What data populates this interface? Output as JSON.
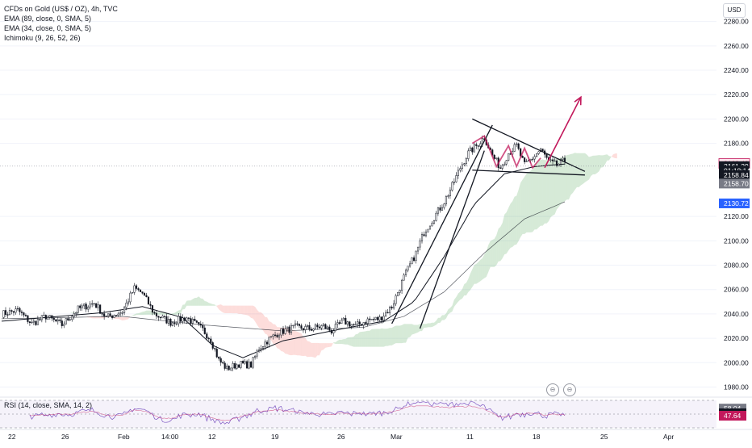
{
  "legend": {
    "title": "CFDs on Gold (US$ / OZ), 4h, TVC",
    "ind1": "EMA (89, close, 0, SMA, 5)",
    "ind2": "EMA (34, close, 0, SMA, 5)",
    "ind3": "Ichimoku (9, 26, 52, 26)",
    "rsi": "RSI (14, close, SMA, 14, 2)"
  },
  "currency": "USD",
  "chart_data": {
    "type": "candlestick",
    "ylim": [
      1975,
      2295
    ],
    "y_ticks": [
      "2280.00",
      "2260.00",
      "2240.00",
      "2220.00",
      "2200.00",
      "2180.00",
      "2120.00",
      "2100.00",
      "2080.00",
      "2060.00",
      "2040.00",
      "2020.00",
      "2000.00",
      "1980.00"
    ],
    "x_ticks": [
      "22",
      "26",
      "Feb",
      "14:00",
      "12",
      "19",
      "26",
      "Mar",
      "11",
      "18",
      "25",
      "Apr"
    ],
    "price_labels": [
      {
        "text": "2163.48",
        "price": 2163.48,
        "color": "#c2185b",
        "filled": false
      },
      {
        "text": "2161.29",
        "price": 2161.29,
        "color": "#131722",
        "filled": true
      },
      {
        "text": "01:18:14",
        "price": 2157.6,
        "color": "#131722",
        "filled": true
      },
      {
        "text": "2158.84",
        "price": 2153.9,
        "color": "#131722",
        "filled": true
      },
      {
        "text": "2158.70",
        "price": 2147.0,
        "color": "#787b86",
        "filled": true
      },
      {
        "text": "2130.72",
        "price": 2130.72,
        "color": "#2962ff",
        "filled": true
      }
    ],
    "current_price": 2161.29,
    "anchors": [
      [
        0,
        2040
      ],
      [
        8,
        2043
      ],
      [
        15,
        2032
      ],
      [
        22,
        2038
      ],
      [
        30,
        2031
      ],
      [
        38,
        2044
      ],
      [
        46,
        2049
      ],
      [
        52,
        2037
      ],
      [
        60,
        2042
      ],
      [
        66,
        2061
      ],
      [
        70,
        2057
      ],
      [
        76,
        2040
      ],
      [
        84,
        2033
      ],
      [
        92,
        2037
      ],
      [
        100,
        2027
      ],
      [
        104,
        2019
      ],
      [
        108,
        2002
      ],
      [
        112,
        1995
      ],
      [
        118,
        1999
      ],
      [
        124,
        1998
      ],
      [
        128,
        2012
      ],
      [
        132,
        2018
      ],
      [
        138,
        2025
      ],
      [
        146,
        2029
      ],
      [
        154,
        2028
      ],
      [
        160,
        2030
      ],
      [
        164,
        2026
      ],
      [
        170,
        2034
      ],
      [
        176,
        2030
      ],
      [
        182,
        2035
      ],
      [
        188,
        2036
      ],
      [
        194,
        2046
      ],
      [
        200,
        2070
      ],
      [
        206,
        2090
      ],
      [
        210,
        2107
      ],
      [
        216,
        2122
      ],
      [
        220,
        2132
      ],
      [
        224,
        2145
      ],
      [
        228,
        2160
      ],
      [
        232,
        2172
      ],
      [
        236,
        2178
      ],
      [
        240,
        2185
      ],
      [
        244,
        2170
      ],
      [
        248,
        2160
      ],
      [
        252,
        2172
      ],
      [
        256,
        2178
      ],
      [
        260,
        2162
      ],
      [
        264,
        2168
      ],
      [
        268,
        2175
      ],
      [
        272,
        2165
      ],
      [
        276,
        2162
      ],
      [
        280,
        2166
      ]
    ],
    "ema89_anchors": [
      [
        0,
        2036
      ],
      [
        60,
        2038
      ],
      [
        100,
        2031
      ],
      [
        140,
        2026
      ],
      [
        180,
        2029
      ],
      [
        200,
        2038
      ],
      [
        220,
        2058
      ],
      [
        240,
        2090
      ],
      [
        260,
        2118
      ],
      [
        280,
        2132
      ]
    ],
    "ema34_anchors": [
      [
        0,
        2034
      ],
      [
        50,
        2041
      ],
      [
        70,
        2046
      ],
      [
        90,
        2037
      ],
      [
        105,
        2014
      ],
      [
        120,
        2004
      ],
      [
        140,
        2018
      ],
      [
        170,
        2028
      ],
      [
        190,
        2034
      ],
      [
        205,
        2050
      ],
      [
        220,
        2087
      ],
      [
        235,
        2130
      ],
      [
        250,
        2155
      ],
      [
        265,
        2161
      ],
      [
        280,
        2163
      ]
    ],
    "rsi": {
      "levels": [
        {
          "text": "58.04",
          "value": 58.04,
          "color": "#787b86"
        },
        {
          "text": "51.20",
          "value": 51.2,
          "color": "#131722"
        },
        {
          "text": "47.64",
          "value": 47.64,
          "color": "#c2185b"
        }
      ]
    },
    "drawings": {
      "channel_upper": [
        [
          194,
          2032
        ],
        [
          244,
          2195
        ]
      ],
      "channel_lower": [
        [
          208,
          2028
        ],
        [
          240,
          2174
        ]
      ],
      "triangle_top": [
        [
          234,
          2200
        ],
        [
          290,
          2157
        ]
      ],
      "triangle_bottom": [
        [
          234,
          2158
        ],
        [
          290,
          2154
        ]
      ],
      "arrow": [
        [
          270,
          2160
        ],
        [
          288,
          2218
        ]
      ]
    }
  }
}
